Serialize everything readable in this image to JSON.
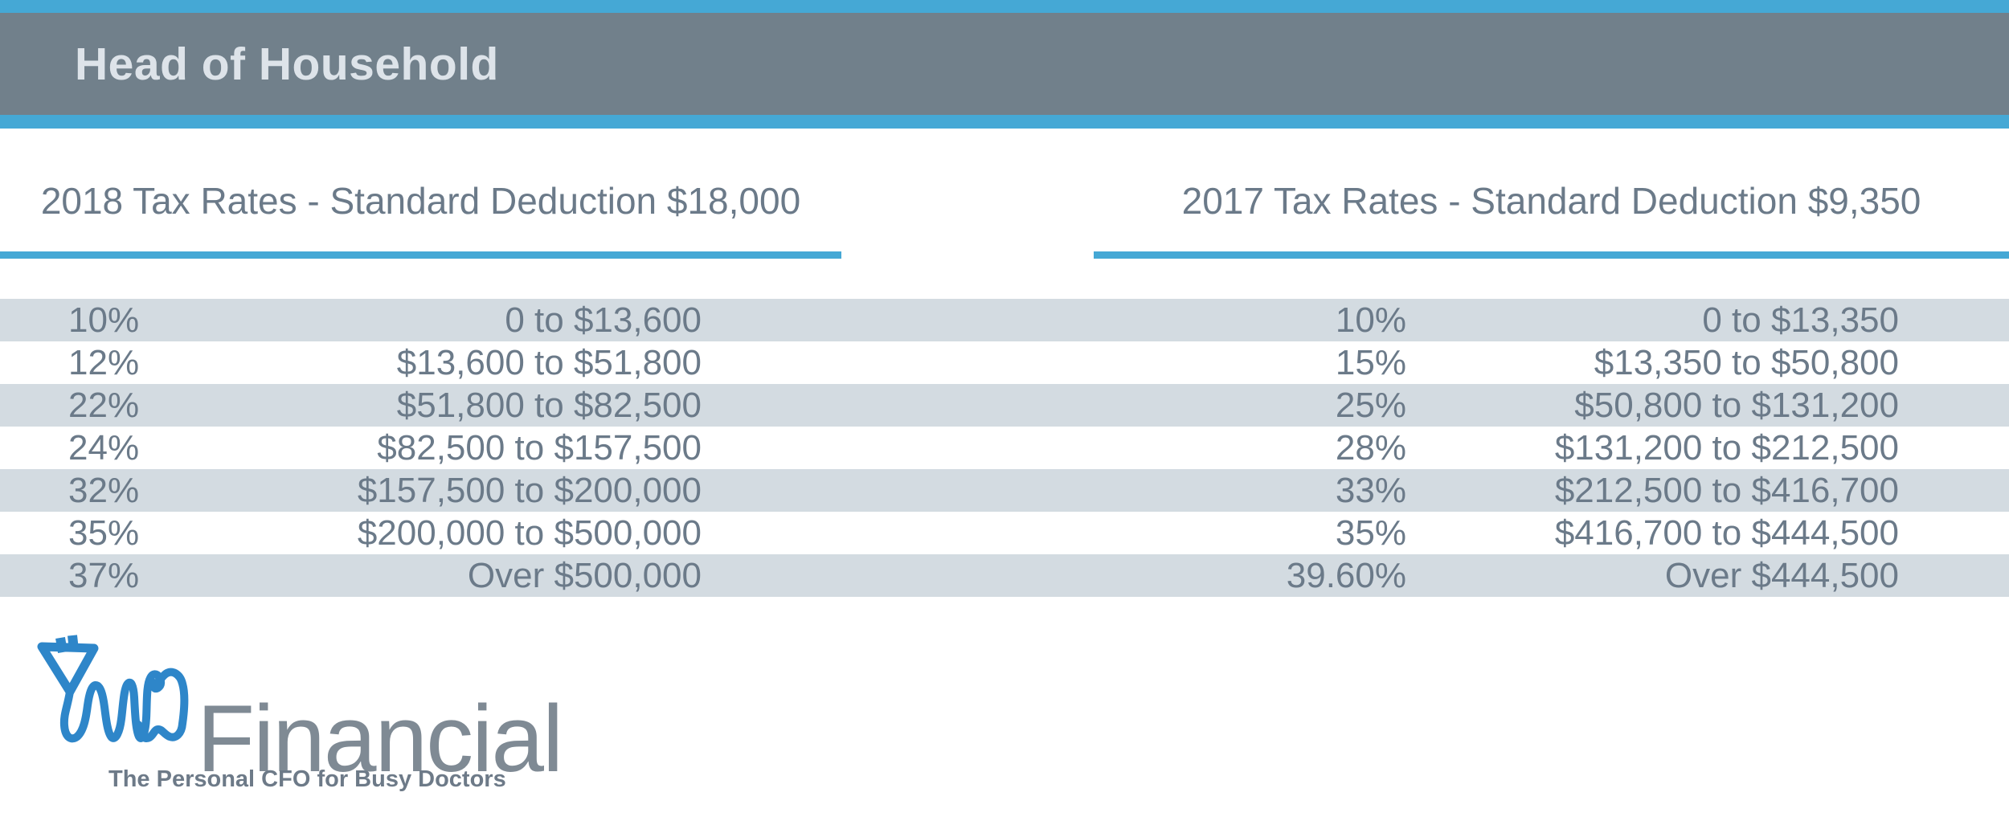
{
  "title_bar": {
    "title": "Head of Household"
  },
  "tables": {
    "left": {
      "header": "2018 Tax Rates - Standard Deduction $18,000",
      "rows": [
        {
          "rate": "10%",
          "range": "0 to $13,600"
        },
        {
          "rate": "12%",
          "range": "$13,600 to $51,800"
        },
        {
          "rate": "22%",
          "range": "$51,800 to $82,500"
        },
        {
          "rate": "24%",
          "range": "$82,500 to $157,500"
        },
        {
          "rate": "32%",
          "range": "$157,500 to $200,000"
        },
        {
          "rate": "35%",
          "range": "$200,000 to $500,000"
        },
        {
          "rate": "37%",
          "range": "Over $500,000"
        }
      ]
    },
    "right": {
      "header": "2017 Tax Rates - Standard Deduction $9,350",
      "rows": [
        {
          "rate": "10%",
          "range": "0 to $13,350"
        },
        {
          "rate": "15%",
          "range": "$13,350 to $50,800"
        },
        {
          "rate": "25%",
          "range": "$50,800 to $131,200"
        },
        {
          "rate": "28%",
          "range": "$131,200 to $212,500"
        },
        {
          "rate": "33%",
          "range": "$212,500 to $416,700"
        },
        {
          "rate": "35%",
          "range": "$416,700 to $444,500"
        },
        {
          "rate": "39.60%",
          "range": "Over $444,500"
        }
      ]
    }
  },
  "logo": {
    "name": "Financial",
    "tagline": "The Personal CFO for Busy Doctors",
    "mark": "stethoscope-tooth-icon"
  },
  "colors": {
    "accent_blue": "#45a8d5",
    "header_band_gray": "#71808b",
    "row_stripe": "#d3dbe1",
    "body_text": "#6b7a89",
    "title_text": "#dde3e9",
    "logo_text_gray": "#7f8a94",
    "logo_mark_blue": "#2e86c9",
    "tagline_text": "#6d7a88"
  }
}
